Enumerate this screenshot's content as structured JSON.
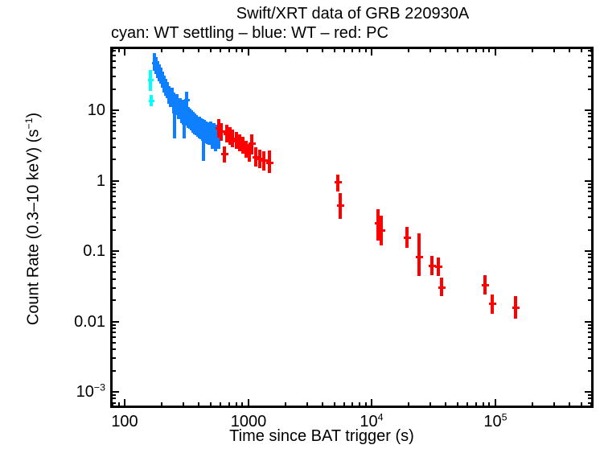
{
  "title": "Swift/XRT data of GRB 220930A",
  "subtitle": "cyan: WT settling – blue: WT – red: PC",
  "colors": {
    "settling": "#00ffff",
    "wt": "#0e7fff",
    "pc": "#ff0000",
    "axis": "#000000",
    "background": "#ffffff"
  },
  "x_axis": {
    "label": "Time since BAT trigger (s)",
    "scale": "log",
    "min": 77,
    "max": 640000,
    "major_ticks": [
      {
        "value": 100,
        "label": "100"
      },
      {
        "value": 1000,
        "label": "1000"
      },
      {
        "value": 10000,
        "label": "10^{4}"
      },
      {
        "value": 100000,
        "label": "10^{5}"
      }
    ]
  },
  "y_axis": {
    "label": "Count Rate (0.3–10 keV) (s^{−1})",
    "scale": "log",
    "min": 0.00059,
    "max": 78,
    "major_ticks": [
      {
        "value": 10,
        "label": "10"
      },
      {
        "value": 1,
        "label": "1"
      },
      {
        "value": 0.1,
        "label": "0.1"
      },
      {
        "value": 0.01,
        "label": "0.01"
      },
      {
        "value": 0.001,
        "label": "10^{−3}"
      }
    ]
  },
  "chart_data": {
    "type": "scatter",
    "title": "Swift/XRT data of GRB 220930A",
    "xlabel": "Time since BAT trigger (s)",
    "ylabel": "Count Rate (0.3-10 keV) (s^-1)",
    "x_scale": "log",
    "y_scale": "log",
    "xlim": [
      77,
      640000
    ],
    "ylim": [
      0.00059,
      78
    ],
    "legend_position": "top-left-above-plot",
    "grid": false,
    "point_format": "[time_s, rate, rate_lo, rate_hi]",
    "series": [
      {
        "name": "WT settling",
        "color": "#00ffff",
        "points": [
          [
            161,
            27,
            19,
            37
          ],
          [
            163,
            13.7,
            11.3,
            16.6
          ]
        ]
      },
      {
        "name": "WT",
        "color": "#0e7fff",
        "points": [
          [
            174,
            47,
            36,
            64
          ],
          [
            179,
            43,
            33,
            57
          ],
          [
            185,
            38,
            29,
            50
          ],
          [
            191,
            34,
            26,
            45
          ],
          [
            196,
            31,
            24,
            40
          ],
          [
            202,
            27,
            21,
            35
          ],
          [
            208,
            24,
            18,
            31
          ],
          [
            215,
            21,
            16,
            28
          ],
          [
            221,
            19.5,
            15,
            25
          ],
          [
            228,
            17,
            12.5,
            22
          ],
          [
            235,
            15,
            11,
            20
          ],
          [
            242,
            16.5,
            12,
            21
          ],
          [
            250,
            13.5,
            9.5,
            18
          ],
          [
            252,
            9.5,
            4.0,
            14
          ],
          [
            257,
            11.8,
            8.5,
            15.5
          ],
          [
            265,
            12.8,
            9.5,
            17
          ],
          [
            273,
            10.5,
            7.5,
            14
          ],
          [
            282,
            11.5,
            8,
            15
          ],
          [
            290,
            9.6,
            6.5,
            13
          ],
          [
            299,
            10.5,
            7.5,
            14
          ],
          [
            304,
            6.5,
            4.0,
            9.2
          ],
          [
            308,
            9,
            6,
            12
          ],
          [
            318,
            14,
            9.8,
            18.5
          ],
          [
            328,
            8.2,
            5.6,
            11
          ],
          [
            338,
            7.8,
            5.4,
            10.5
          ],
          [
            348,
            7.4,
            5.2,
            10
          ],
          [
            358,
            7,
            4.8,
            9.5
          ],
          [
            370,
            6.7,
            4.6,
            9
          ],
          [
            381,
            6.4,
            4.4,
            8.6
          ],
          [
            393,
            6.1,
            4.2,
            8.2
          ],
          [
            405,
            5.9,
            4,
            8
          ],
          [
            416,
            5.7,
            3.9,
            7.7
          ],
          [
            430,
            5.5,
            3.7,
            7.4
          ],
          [
            438,
            4,
            1.9,
            6.2
          ],
          [
            443,
            5.3,
            3.6,
            7.2
          ],
          [
            456,
            5.1,
            3.4,
            7
          ],
          [
            470,
            5,
            3.3,
            6.8
          ],
          [
            483,
            4.8,
            3.2,
            6.6
          ],
          [
            500,
            5.2,
            3.5,
            7
          ],
          [
            515,
            4.2,
            2.8,
            5.8
          ],
          [
            530,
            4.9,
            3.3,
            6.6
          ],
          [
            546,
            4,
            2.6,
            5.5
          ],
          [
            562,
            4.6,
            3.1,
            6.2
          ],
          [
            578,
            4.3,
            2.8,
            5.9
          ]
        ]
      },
      {
        "name": "PC",
        "color": "#ff0000",
        "points": [
          [
            578,
            5.6,
            4.1,
            7.4
          ],
          [
            606,
            5.0,
            3.7,
            6.6
          ],
          [
            640,
            2.4,
            1.8,
            3.1
          ],
          [
            672,
            4.7,
            3.5,
            6.2
          ],
          [
            710,
            4.3,
            3.2,
            5.7
          ],
          [
            752,
            4.0,
            3.0,
            5.3
          ],
          [
            800,
            3.7,
            2.8,
            4.9
          ],
          [
            850,
            3.5,
            2.6,
            4.6
          ],
          [
            905,
            3.2,
            2.4,
            4.2
          ],
          [
            965,
            2.8,
            2.1,
            3.7
          ],
          [
            1030,
            2.5,
            1.85,
            3.3
          ],
          [
            1070,
            3.4,
            2.5,
            4.5
          ],
          [
            1150,
            2.2,
            1.6,
            2.95
          ],
          [
            1240,
            2.05,
            1.5,
            2.75
          ],
          [
            1340,
            1.95,
            1.4,
            2.6
          ],
          [
            1490,
            1.8,
            1.3,
            2.7
          ],
          [
            5350,
            0.95,
            0.7,
            1.22
          ],
          [
            5550,
            0.45,
            0.29,
            0.66
          ],
          [
            11300,
            0.25,
            0.14,
            0.39
          ],
          [
            11900,
            0.2,
            0.12,
            0.32
          ],
          [
            19400,
            0.155,
            0.11,
            0.22
          ],
          [
            24300,
            0.083,
            0.044,
            0.18
          ],
          [
            30600,
            0.062,
            0.045,
            0.085
          ],
          [
            34800,
            0.06,
            0.044,
            0.082
          ],
          [
            36800,
            0.031,
            0.023,
            0.042
          ],
          [
            83000,
            0.033,
            0.024,
            0.046
          ],
          [
            95000,
            0.018,
            0.013,
            0.024
          ],
          [
            147000,
            0.016,
            0.011,
            0.023
          ]
        ]
      }
    ]
  }
}
